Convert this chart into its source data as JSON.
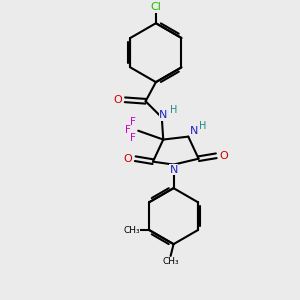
{
  "background_color": "#ebebeb",
  "bond_color": "#000000",
  "bond_width": 1.5,
  "figsize": [
    3.0,
    3.0
  ],
  "dpi": 100,
  "atom_colors": {
    "N": "#2020cc",
    "O": "#cc0000",
    "F": "#cc00cc",
    "Cl": "#22bb00",
    "H": "#228888",
    "C": "#000000"
  },
  "xlim": [
    0,
    10
  ],
  "ylim": [
    0,
    10
  ]
}
